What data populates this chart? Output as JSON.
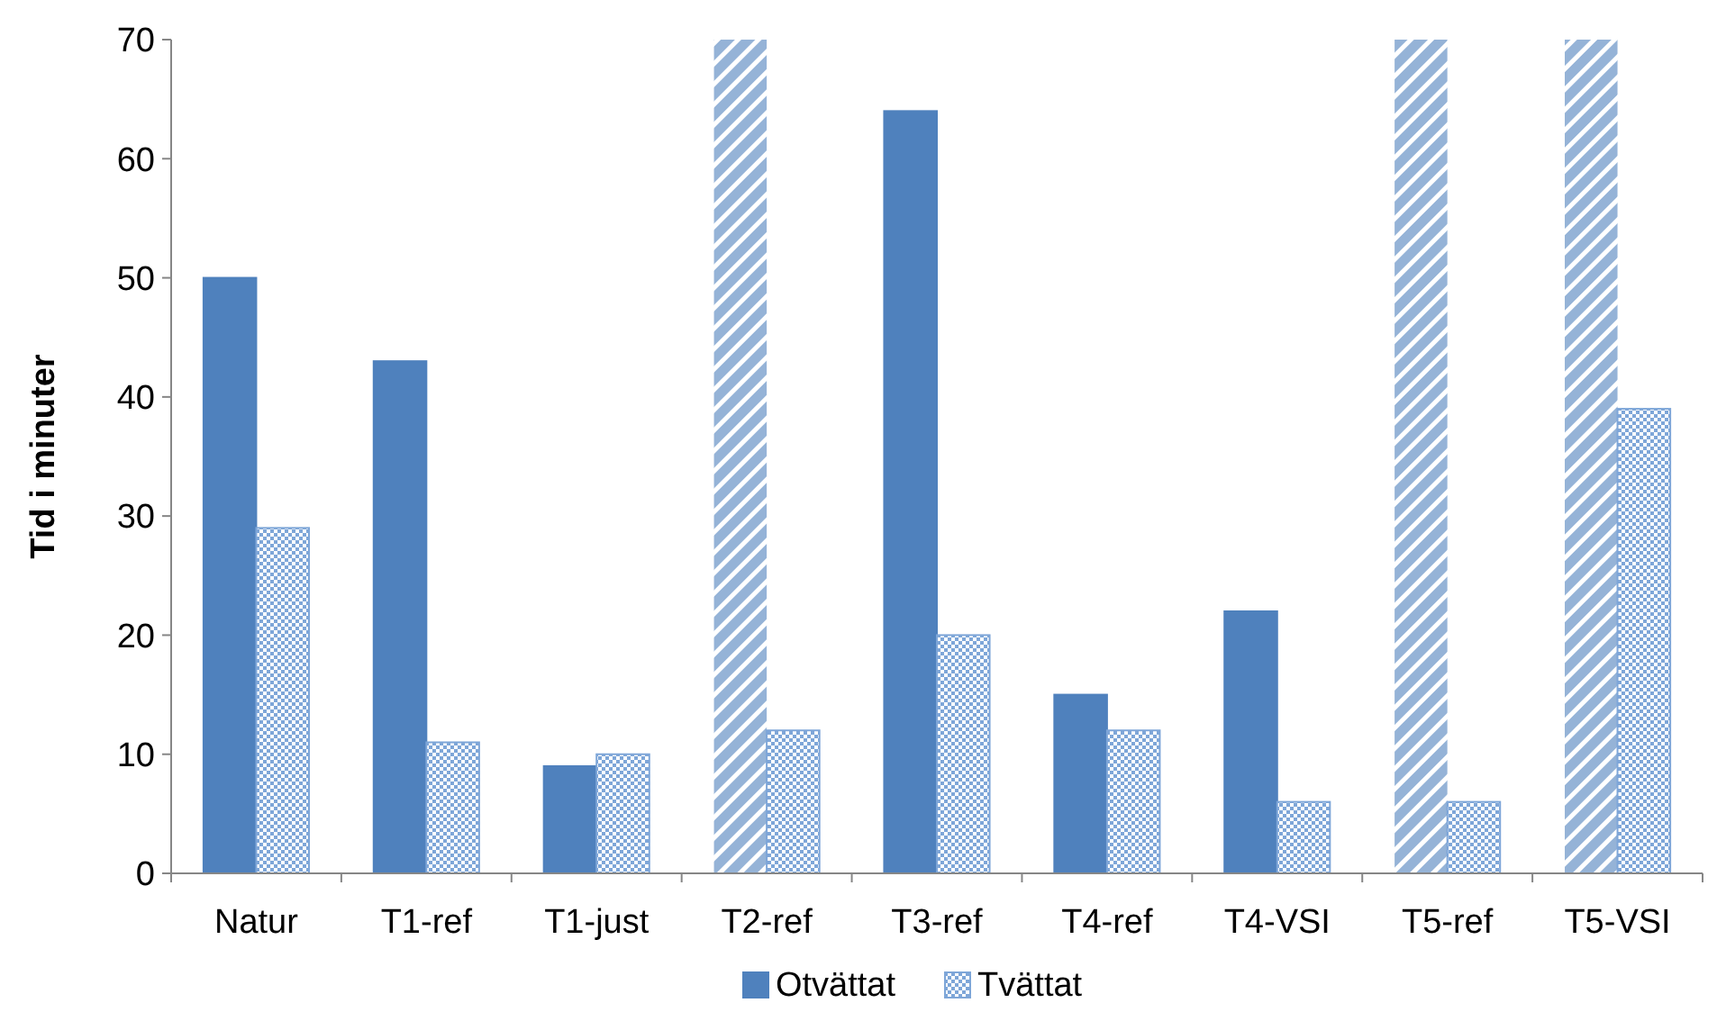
{
  "chart_data": {
    "type": "bar",
    "ylabel": "Tid i minuter",
    "categories": [
      "Natur",
      "T1-ref",
      "T1-just",
      "T2-ref",
      "T3-ref",
      "T4-ref",
      "T4-VSI",
      "T5-ref",
      "T5-VSI"
    ],
    "series": [
      {
        "name": "Otvättat",
        "color": "#4f81bd",
        "values": [
          50,
          43,
          9,
          70,
          64,
          15,
          22,
          70,
          70
        ],
        "colors": [
          "#4f81bd",
          "#4f81bd",
          "#4f81bd",
          "#95b3d7",
          "#4f81bd",
          "#4f81bd",
          "#4f81bd",
          "#95b3d7",
          "#95b3d7"
        ]
      },
      {
        "name": "Tvättat",
        "color": "#7ea6d8",
        "values": [
          29,
          11,
          10,
          12,
          20,
          12,
          6,
          6,
          39
        ]
      }
    ],
    "ylim": [
      0,
      70
    ],
    "yticks": [
      0,
      10,
      20,
      30,
      40,
      50,
      60,
      70
    ],
    "grid": false,
    "legend": "bottom"
  }
}
